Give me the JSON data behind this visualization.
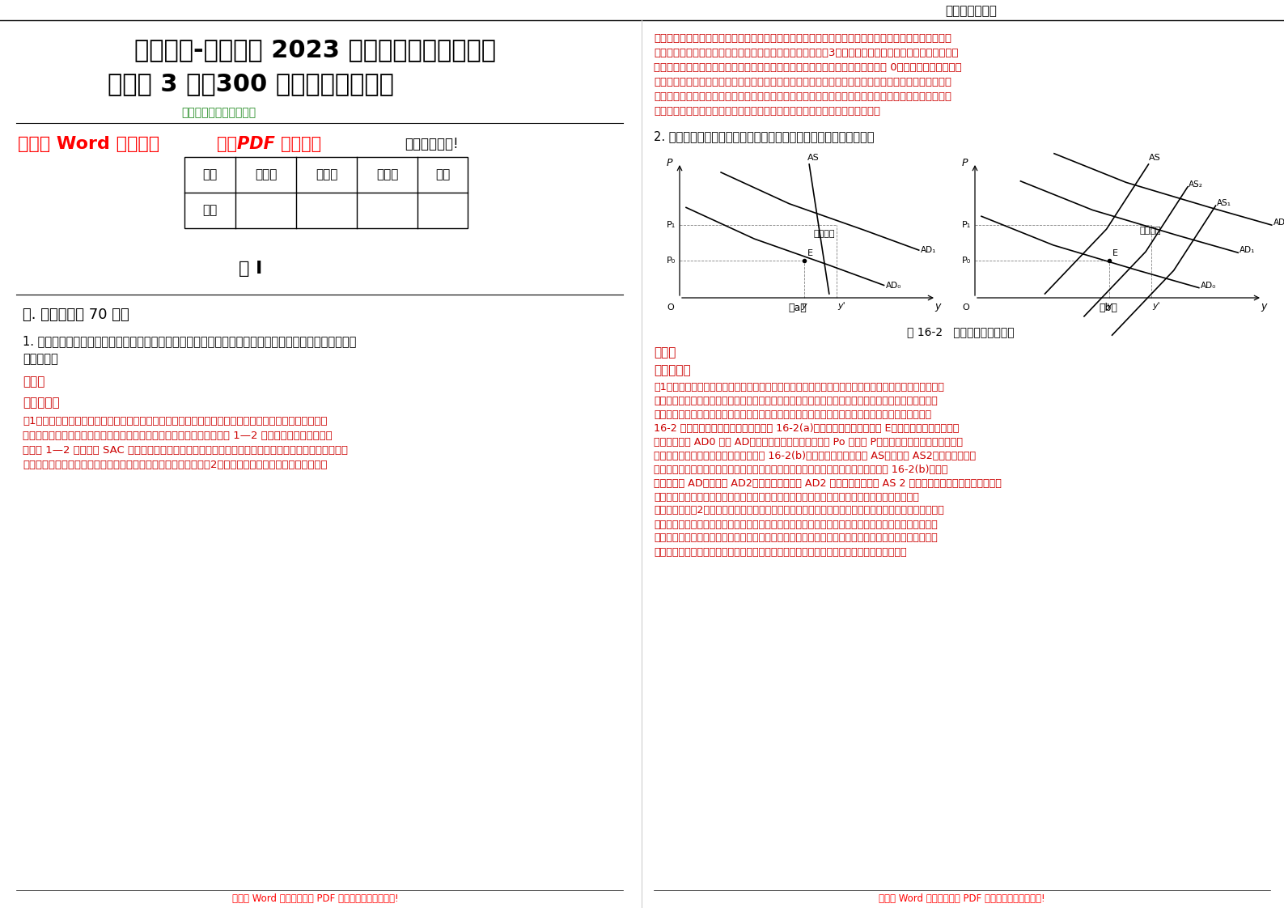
{
  "bg_color": "#ffffff",
  "header_text": "住在富人区的她",
  "title_line1": "考研考博-泰州学院 2023 年考研《经济学》全真",
  "title_line2": "模拟卷 3 套【300 题】附带答案详解",
  "subtitle": "（图片可自由调整大小）",
  "word_edit_text1": "全文为 Word 可编辑，",
  "word_edit_text2": "若为PDF 皆为盗版",
  "word_edit_text3": "，请谨慎购买!",
  "table_headers": [
    "题型",
    "选择题",
    "判断题",
    "问答题",
    "总分"
  ],
  "table_row": [
    "得分",
    "",
    "",
    "",
    ""
  ],
  "juan_text": "卷 I",
  "section_title": "一. 问答题（共 70 题）",
  "q1_text": "1. 画图说明如何从短期平均成本曲线推导出长期平均成本曲线，并说明长期平均成本曲线的经济含义及移\n动的原因。",
  "answer_label": "答案：",
  "benti_label": "本题解析：",
  "answer_body": "（1）从短期平均成本曲线推导出长期平均成本曲线。在长期生产中，厂商总是可以在每一产量水平上找到\n相应的最优的生产规模进行生产。而在短期内，厂商做不到这一点。如图 1—2 所示。由以上分析可见，\n沿着图 1—2 中所有的 SAC 曲线的实线部分，厂商总是可以找到长期内生产某一产量的最低平均成本的。\n显然，长期平均成本曲线是无数条短期平均成本曲线的包络线。（2）长期平均成本曲线的经济含义。长期",
  "right_col_body1": "平均成本曲线反映了厂商在长期内每一个产量水平上可以实现的最小的平均成本。在规模报酬不变的条件\n下，长期平均成本曲线由短期平均成本曲线的最低点构成。（3）长期平均成本曲线移动的原因。长期平均\n成本曲线位置的变化原因可以用企业的外在经济和外在不经济的概念来解释。〔图 0〕企业外在经济是由于\n厂商的生产活动所依赖的外界环境得到改善而产生的，此时长期平均成本曲线向下移动。相反，如果厂商\n的生产活动所依赖的外界环境恶化了，则为企业的外在不经济，长期平均曲线向上移动。外在经济和外在\n不经济是由企业以外的因素所引起的，它影响厂商的长期平均成本曲线的位置。",
  "q2_text": "2. 政府公开宣布控制通货膨胀预期的意义，通货膨胀如何自我维持：",
  "fig_caption": "图 16-2   通货膨胀的自我维持",
  "right_answer_label": "答案：",
  "right_benti_label": "本题解析：",
  "right_answer_body": "（1）通货膨胀的自我维持是指通货膨胀率会有不断持续下去的趋势，即价格水平不断持续上升。产生这种\n现象的原因在于，如果经济中大多数人都预期到同样的通货膨胀率，那么，这种对通货膨胀的预期就会变\n成经济运行的现象。通货膨胀开始后，在需求拉动和成本推动的作用下，通货膨胀会自行持续下去。图\n16-2 说明了通货膨胀的自我维持。在图 16-2(a)中，经济初始处于平衡点 E。假定出现总需求冲击，\n总需求曲线从 AD0 移到 AD，这个移动使得价格从原来的 Po 上升到 P。价格上升引起工资提高，较高\n的工资使总供给曲线向上移动，表现在图 16-2(b)中，就是总供给曲线由 AS。移动到 AS2。同时，更高的\n工资意味着人们有更多的货币收入，导致更多的消费，从而使总需求进一步扩大，在图 16-2(b)中，总\n需求曲线由 AD。移动到 AD2。新的总需求曲线 AD2 与新的总供给曲线 AS 2 之间存在一个对商品的超额需求，\n导致价格进一步上涨，又引发了另一轮的工资的上涨。这样，通货膨胀在整个经济中具有不断循环\n下去的趋势。（2）政府公开宣布控制通货膨胀预期的意义。通货膨胀预期是指公众对后一段时期内可能发\n生的通货膨胀的事前估计。政府所宣布的将要执行的各种经济政策会影响或决定人们的预期。因此，当政\n府宣布控制通货膨胀的预期并且承诺可信时，如政府宣布将控制物价水平或增加有效供给时，就可以有效\n抑制需求的扩大和抢购风潮的发生，物价就能够保持稳定，通货膨胀也就不能自我维持下去。",
  "bottom_word_text": "全文为 Word 可编辑，若为 PDF 皆为盗版，请谨慎购买!"
}
